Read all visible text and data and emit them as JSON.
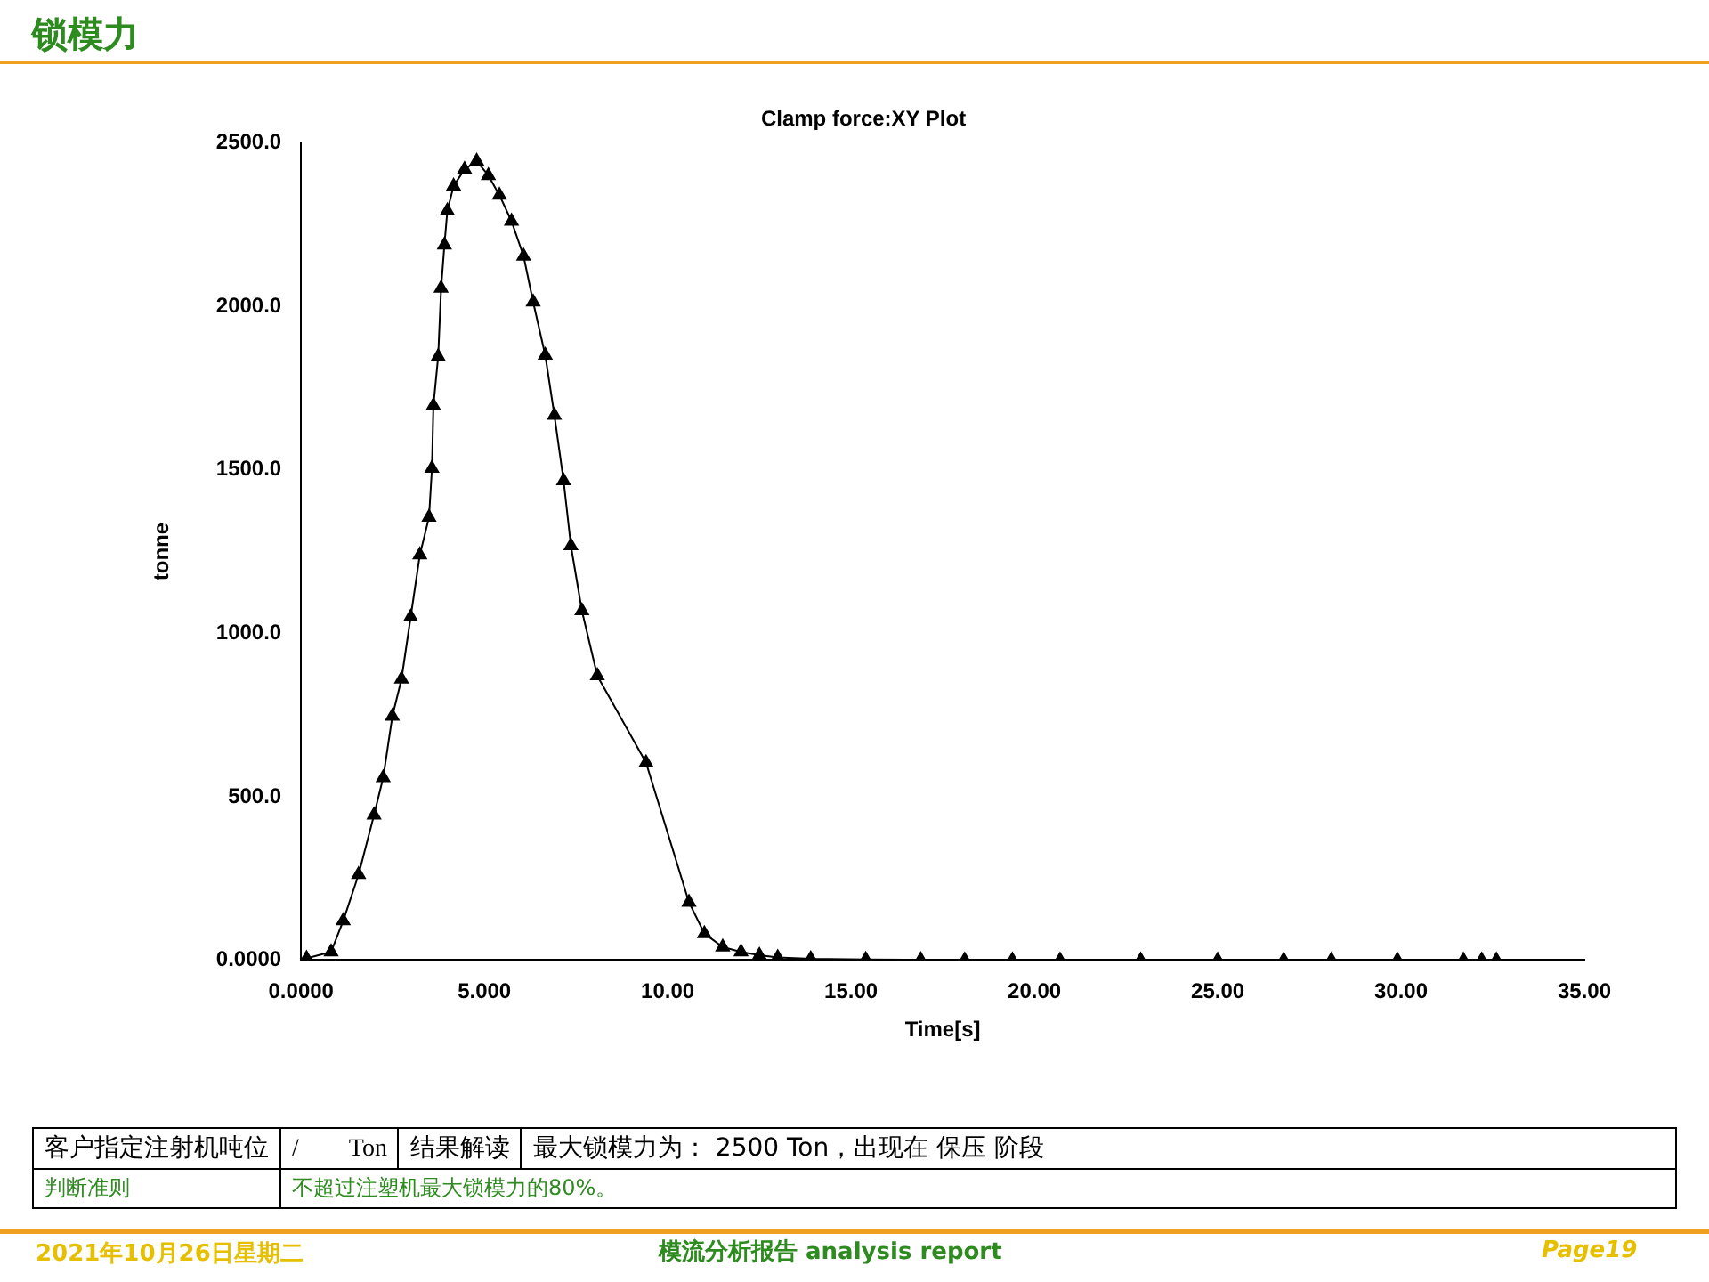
{
  "chart_data": {
    "type": "line",
    "title": "锁模力",
    "subtitle": "Clamp force:XY Plot",
    "xlabel": "Time[s]",
    "ylabel": "tonne",
    "series": [
      {
        "color": "#000000",
        "x": [
          0.15,
          0.82,
          1.15,
          1.57,
          1.99,
          2.24,
          2.49,
          2.74,
          2.99,
          3.24,
          3.49,
          3.57,
          3.61,
          3.74,
          3.82,
          3.91,
          3.99,
          4.16,
          4.46,
          4.79,
          5.11,
          5.41,
          5.74,
          6.07,
          6.33,
          6.66,
          6.91,
          7.16,
          7.36,
          7.66,
          8.08,
          9.41,
          10.58,
          11.0,
          11.5,
          12.0,
          12.5,
          13.0,
          13.9,
          15.4,
          16.9,
          18.1,
          19.4,
          20.7,
          22.9,
          25.0,
          26.8,
          28.1,
          29.9,
          31.7,
          32.2,
          32.6
        ],
        "values": [
          5,
          25,
          120,
          262,
          444,
          558,
          746,
          860,
          1050,
          1240,
          1355,
          1505,
          1697,
          1847,
          2056,
          2188,
          2293,
          2369,
          2420,
          2445,
          2401,
          2341,
          2261,
          2154,
          2014,
          1851,
          1667,
          1467,
          1268,
          1069,
          870,
          604,
          177,
          81,
          40,
          25,
          15,
          8,
          4,
          2,
          1,
          0,
          0,
          0,
          0,
          0,
          0,
          0,
          0,
          0,
          0,
          0
        ]
      }
    ],
    "xlim": [
      0,
      35
    ],
    "xticks": [
      {
        "value": 0,
        "label": "0.0000"
      },
      {
        "value": 5,
        "label": "5.000"
      },
      {
        "value": 10,
        "label": "10.00"
      },
      {
        "value": 15,
        "label": "15.00"
      },
      {
        "value": 20,
        "label": "20.00"
      },
      {
        "value": 25,
        "label": "25.00"
      },
      {
        "value": 30,
        "label": "30.00"
      },
      {
        "value": 35,
        "label": "35.00"
      }
    ],
    "ylim": [
      0,
      2500
    ],
    "yticks": [
      {
        "value": 0,
        "label": "0.0000"
      },
      {
        "value": 500,
        "label": "500.0"
      },
      {
        "value": 1000,
        "label": "1000.0"
      },
      {
        "value": 1500,
        "label": "1500.0"
      },
      {
        "value": 2000,
        "label": "2000.0"
      },
      {
        "value": 2500,
        "label": "2500.0"
      }
    ],
    "grid": false,
    "legend": false,
    "marker": "triangle",
    "line_style": "solid",
    "annotations": [
      "客户指定注射机吨位",
      "/　　Ton",
      "结果解读",
      "最大锁模力为： 2500 Ton，出现在 保压 阶段",
      "判断准则",
      "不超过注塑机最大锁模力的80%。",
      "2021年10月26日星期二",
      "模流分析报告 analysis report",
      "Page19"
    ]
  }
}
